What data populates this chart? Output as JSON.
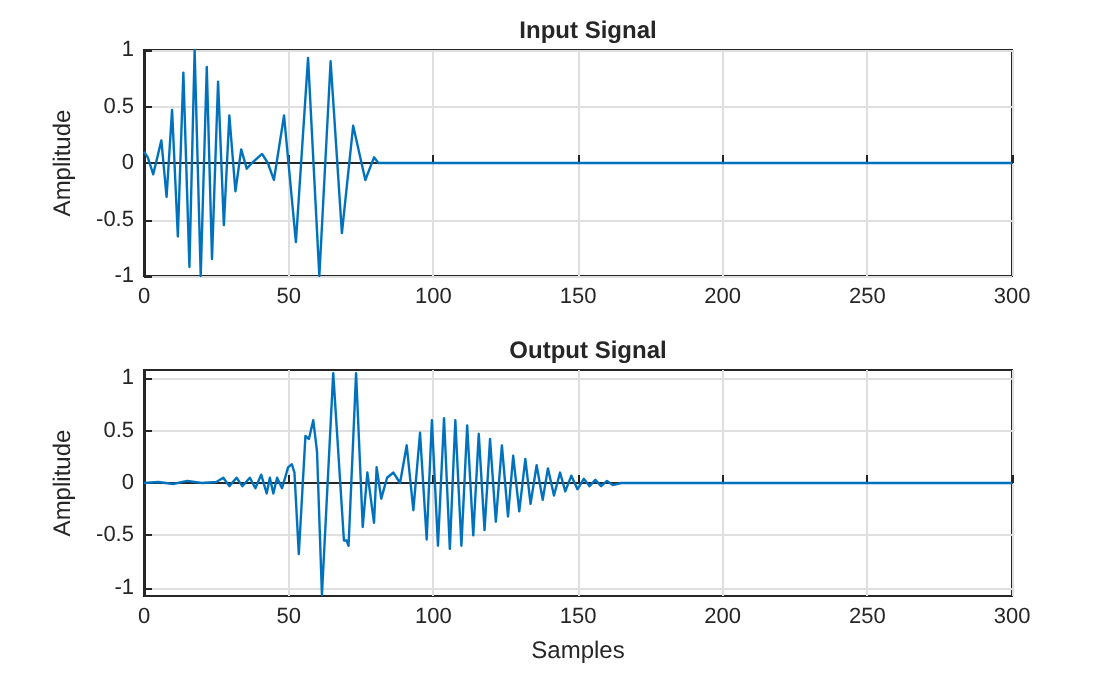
{
  "chart_data": [
    {
      "type": "line",
      "title": "Input Signal",
      "ylabel": "Amplitude",
      "xlim": [
        0,
        300
      ],
      "xticks": [
        0,
        50,
        100,
        150,
        200,
        250,
        300
      ],
      "ylim": [
        -1,
        1
      ],
      "yticks": [
        -1,
        -0.5,
        0,
        0.5,
        1
      ],
      "grid": true,
      "series": [
        {
          "color": "#0072bd",
          "x": [
            0,
            1.3,
            3.2,
            6,
            7.8,
            9.7,
            11.7,
            13.6,
            15.7,
            17.5,
            19.6,
            21.7,
            23.5,
            25.6,
            27.6,
            29.5,
            31.6,
            33.6,
            35.5,
            37.3,
            40.8,
            42.8,
            44.9,
            48.4,
            52.5,
            56.7,
            60.6,
            64.5,
            68.4,
            72.3,
            76.5,
            79.5,
            81,
            300
          ],
          "values": [
            0.1,
            0.05,
            -0.1,
            0.2,
            -0.3,
            0.47,
            -0.65,
            0.8,
            -0.92,
            1,
            -1,
            0.85,
            -0.85,
            0.72,
            -0.55,
            0.42,
            -0.25,
            0.12,
            -0.05,
            0,
            0.08,
            0,
            -0.15,
            0.42,
            -0.7,
            0.93,
            -1,
            0.9,
            -0.62,
            0.33,
            -0.15,
            0.05,
            0,
            0
          ]
        }
      ]
    },
    {
      "type": "line",
      "title": "Output Signal",
      "xlabel": "Samples",
      "ylabel": "Amplitude",
      "xlim": [
        0,
        300
      ],
      "xticks": [
        0,
        50,
        100,
        150,
        200,
        250,
        300
      ],
      "ylim": [
        -1.08,
        1.08
      ],
      "yticks": [
        -1,
        -0.5,
        0,
        0.5,
        1
      ],
      "grid": true,
      "series": [
        {
          "color": "#0072bd",
          "x": [
            0,
            5,
            10,
            15,
            20,
            25,
            27.4,
            29.5,
            32,
            34,
            36.6,
            38.5,
            40.5,
            42.4,
            43.5,
            44.7,
            46,
            47.7,
            49.8,
            51.1,
            52,
            53.5,
            55.8,
            57,
            58.5,
            59.8,
            61.5,
            65.4,
            69.1,
            70,
            70.7,
            73.3,
            75.6,
            77.2,
            79.5,
            80.4,
            82,
            84,
            86.2,
            88.5,
            90.8,
            93.1,
            95.4,
            97.7,
            99.5,
            101.6,
            103.7,
            105.7,
            107.6,
            109.7,
            111.7,
            113.8,
            115.7,
            117.7,
            119.6,
            121.6,
            123.7,
            125.8,
            127.6,
            129.7,
            131.8,
            133.6,
            135.7,
            137.8,
            139.6,
            141.7,
            143.8,
            145.6,
            147.7,
            149.8,
            152,
            154,
            156,
            158,
            160,
            162,
            165,
            300
          ],
          "values": [
            0,
            0.01,
            -0.01,
            0.02,
            0,
            0.01,
            0.05,
            -0.03,
            0.05,
            -0.03,
            0.05,
            -0.05,
            0.08,
            -0.1,
            0.05,
            -0.1,
            0.05,
            -0.05,
            0.15,
            0.18,
            0.1,
            -0.68,
            0.45,
            0.42,
            0.6,
            0.3,
            -1.07,
            1.05,
            -0.55,
            -0.55,
            -0.6,
            1.05,
            -0.42,
            0.1,
            -0.38,
            0.15,
            -0.15,
            0.05,
            0.1,
            0,
            0.36,
            -0.26,
            0.48,
            -0.54,
            0.6,
            -0.6,
            0.62,
            -0.63,
            0.6,
            -0.6,
            0.55,
            -0.5,
            0.47,
            -0.45,
            0.42,
            -0.37,
            0.36,
            -0.32,
            0.26,
            -0.27,
            0.23,
            -0.2,
            0.17,
            -0.16,
            0.14,
            -0.12,
            0.1,
            -0.08,
            0.07,
            -0.06,
            0.04,
            -0.03,
            0.03,
            -0.03,
            0.02,
            -0.02,
            0,
            0
          ]
        }
      ]
    }
  ]
}
